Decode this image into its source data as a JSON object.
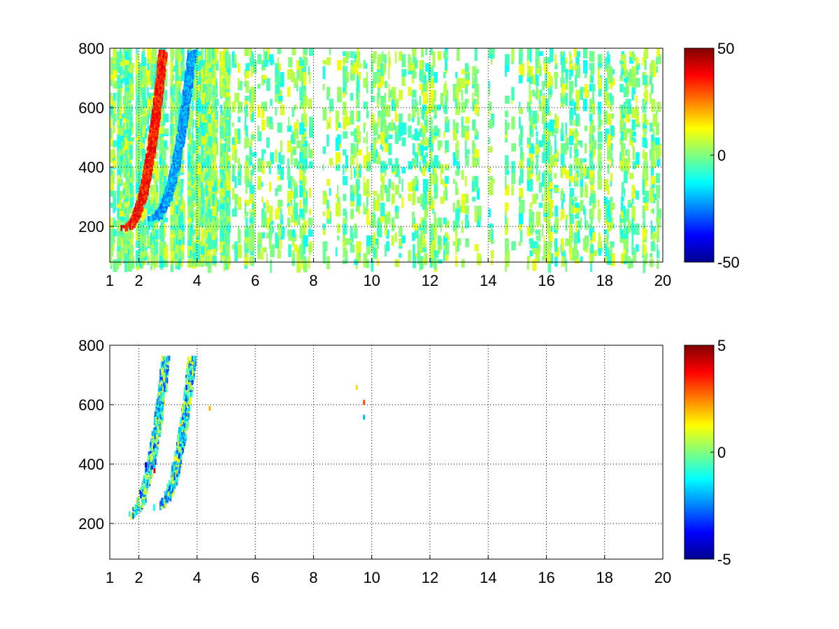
{
  "chart_data": [
    {
      "type": "heatmap",
      "title": "",
      "xlabel": "",
      "ylabel": "",
      "xlim": [
        1,
        20
      ],
      "ylim": [
        80,
        800
      ],
      "xticks": [
        1,
        2,
        4,
        6,
        8,
        10,
        12,
        14,
        16,
        18,
        20
      ],
      "yticks": [
        200,
        400,
        600,
        800
      ],
      "grid": true,
      "colormap": "jet",
      "colorbar": {
        "min": -50,
        "max": 50,
        "ticks": [
          50,
          0,
          -50
        ]
      },
      "features": [
        {
          "x_start": 1.5,
          "y_start": 200,
          "x_end": 2.8,
          "y_end": 790,
          "value": 35
        },
        {
          "x_start": 2.4,
          "y_start": 230,
          "x_end": 3.8,
          "y_end": 790,
          "value": -22
        }
      ],
      "background": {
        "value_range": [
          -12,
          12
        ],
        "x_range": [
          1,
          20
        ],
        "y_range": [
          80,
          800
        ]
      }
    },
    {
      "type": "heatmap",
      "title": "",
      "xlabel": "",
      "ylabel": "",
      "xlim": [
        1,
        20
      ],
      "ylim": [
        80,
        800
      ],
      "xticks": [
        1,
        2,
        4,
        6,
        8,
        10,
        12,
        14,
        16,
        18,
        20
      ],
      "yticks": [
        200,
        400,
        600,
        800
      ],
      "grid": true,
      "colormap": "jet",
      "colorbar": {
        "min": -5,
        "max": 5,
        "ticks": [
          5,
          0,
          -5
        ]
      },
      "features": [
        {
          "x_start": 1.6,
          "y_start": 230,
          "x_end": 2.9,
          "y_end": 760,
          "value": -1
        },
        {
          "x_start": 2.6,
          "y_start": 260,
          "x_end": 3.8,
          "y_end": 760,
          "value": -1
        }
      ],
      "isolated_points": [
        {
          "x": 9.45,
          "y": 660,
          "value": 1.5
        },
        {
          "x": 9.7,
          "y": 610,
          "value": 3
        },
        {
          "x": 9.7,
          "y": 560,
          "value": -2
        },
        {
          "x": 4.4,
          "y": 590,
          "value": 2
        },
        {
          "x": 2.2,
          "y": 400,
          "value": -4
        },
        {
          "x": 2.5,
          "y": 380,
          "value": 4
        }
      ]
    }
  ]
}
